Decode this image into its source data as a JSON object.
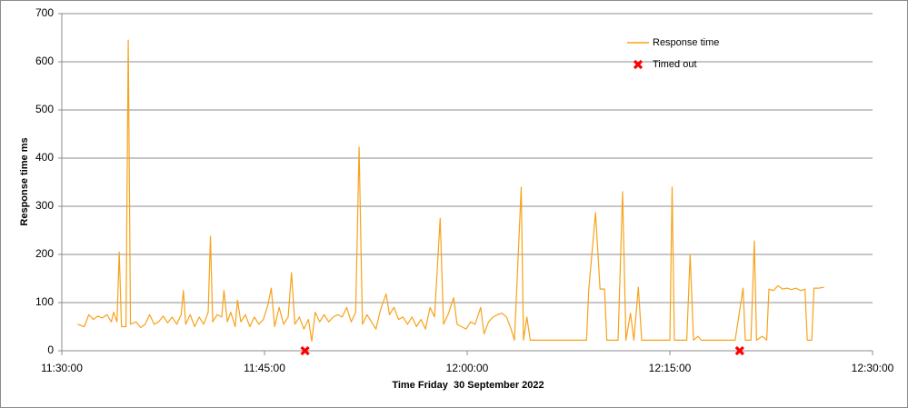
{
  "chart_data": {
    "type": "line",
    "xlabel": "Time Friday  30 September 2022",
    "ylabel": "Response time ms",
    "xlim": [
      "11:30:00",
      "12:30:00"
    ],
    "xticks": [
      "11:30:00",
      "11:45:00",
      "12:00:00",
      "12:15:00",
      "12:30:00"
    ],
    "ylim": [
      0,
      700
    ],
    "yticks": [
      0,
      100,
      200,
      300,
      400,
      500,
      600,
      700
    ],
    "grid": true,
    "legend": "upper right",
    "series": [
      {
        "name": "Response time",
        "color": "#f7a21b",
        "x": [
          "11:31:10",
          "11:31:40",
          "11:32:00",
          "11:32:20",
          "11:32:40",
          "11:33:00",
          "11:33:20",
          "11:33:40",
          "11:33:50",
          "11:34:05",
          "11:34:15",
          "11:34:25",
          "11:34:45",
          "11:34:55",
          "11:35:05",
          "11:35:30",
          "11:35:50",
          "11:36:10",
          "11:36:30",
          "11:36:50",
          "11:37:10",
          "11:37:30",
          "11:37:50",
          "11:38:10",
          "11:38:30",
          "11:38:50",
          "11:39:00",
          "11:39:10",
          "11:39:30",
          "11:39:50",
          "11:40:10",
          "11:40:30",
          "11:40:50",
          "11:41:00",
          "11:41:10",
          "11:41:30",
          "11:41:50",
          "11:42:00",
          "11:42:15",
          "11:42:30",
          "11:42:50",
          "11:43:00",
          "11:43:15",
          "11:43:35",
          "11:43:55",
          "11:44:15",
          "11:44:35",
          "11:44:55",
          "11:45:15",
          "11:45:30",
          "11:45:45",
          "11:46:05",
          "11:46:25",
          "11:46:45",
          "11:47:00",
          "11:47:15",
          "11:47:35",
          "11:47:55",
          "11:48:15",
          "11:48:30",
          "11:48:45",
          "11:49:05",
          "11:49:25",
          "11:49:45",
          "11:50:05",
          "11:50:25",
          "11:50:45",
          "11:51:05",
          "11:51:25",
          "11:51:45",
          "11:52:00",
          "11:52:15",
          "11:52:35",
          "11:52:55",
          "11:53:15",
          "11:53:35",
          "11:54:00",
          "11:54:15",
          "11:54:35",
          "11:54:55",
          "11:55:15",
          "11:55:35",
          "11:55:55",
          "11:56:15",
          "11:56:35",
          "11:56:55",
          "11:57:15",
          "11:57:35",
          "11:58:00",
          "11:58:15",
          "11:58:35",
          "11:59:00",
          "11:59:15",
          "11:59:35",
          "11:59:55",
          "12:00:15",
          "12:00:35",
          "12:01:00",
          "12:01:15",
          "12:01:35",
          "12:01:55",
          "12:02:15",
          "12:02:35",
          "12:02:55",
          "12:03:15",
          "12:03:30",
          "12:04:00",
          "12:04:10",
          "12:04:25",
          "12:04:40",
          "12:08:50",
          "12:09:00",
          "12:09:30",
          "12:09:50",
          "12:10:10",
          "12:10:20",
          "12:11:10",
          "12:11:30",
          "12:11:45",
          "12:12:05",
          "12:12:20",
          "12:12:40",
          "12:12:55",
          "12:15:00",
          "12:15:10",
          "12:15:20",
          "12:16:15",
          "12:16:30",
          "12:16:45",
          "12:17:05",
          "12:17:20",
          "12:19:50",
          "12:20:25",
          "12:20:35",
          "12:21:00",
          "12:21:15",
          "12:21:25",
          "12:21:50",
          "12:22:10",
          "12:22:20",
          "12:22:40",
          "12:23:00",
          "12:23:20",
          "12:23:40",
          "12:24:00",
          "12:24:20",
          "12:24:40",
          "12:25:00",
          "12:25:10",
          "12:25:30",
          "12:25:40",
          "12:26:00",
          "12:26:25"
        ],
        "values": [
          55,
          50,
          75,
          65,
          72,
          68,
          75,
          60,
          80,
          60,
          205,
          50,
          50,
          645,
          55,
          60,
          48,
          55,
          75,
          55,
          60,
          72,
          58,
          70,
          55,
          75,
          125,
          55,
          75,
          50,
          70,
          55,
          80,
          238,
          60,
          75,
          70,
          125,
          60,
          80,
          50,
          105,
          60,
          75,
          50,
          70,
          55,
          65,
          95,
          130,
          50,
          90,
          55,
          70,
          162,
          55,
          70,
          45,
          65,
          20,
          80,
          60,
          75,
          60,
          70,
          75,
          70,
          90,
          60,
          80,
          423,
          55,
          75,
          60,
          45,
          85,
          118,
          75,
          90,
          65,
          70,
          55,
          70,
          50,
          65,
          45,
          90,
          70,
          275,
          55,
          75,
          110,
          55,
          50,
          45,
          60,
          55,
          90,
          35,
          60,
          70,
          75,
          78,
          70,
          45,
          22,
          340,
          22,
          70,
          22,
          22,
          128,
          287,
          128,
          128,
          22,
          22,
          330,
          22,
          78,
          22,
          132,
          22,
          22,
          340,
          22,
          22,
          200,
          22,
          30,
          22,
          22,
          130,
          22,
          22,
          228,
          22,
          30,
          22,
          128,
          125,
          135,
          128,
          130,
          127,
          130,
          125,
          128,
          22,
          22,
          130,
          130,
          132
        ]
      },
      {
        "name": "Timed out",
        "color": "#ff0000",
        "marker": "x",
        "x": [
          "11:48:00",
          "12:20:10"
        ],
        "values": [
          0,
          0
        ]
      }
    ]
  }
}
